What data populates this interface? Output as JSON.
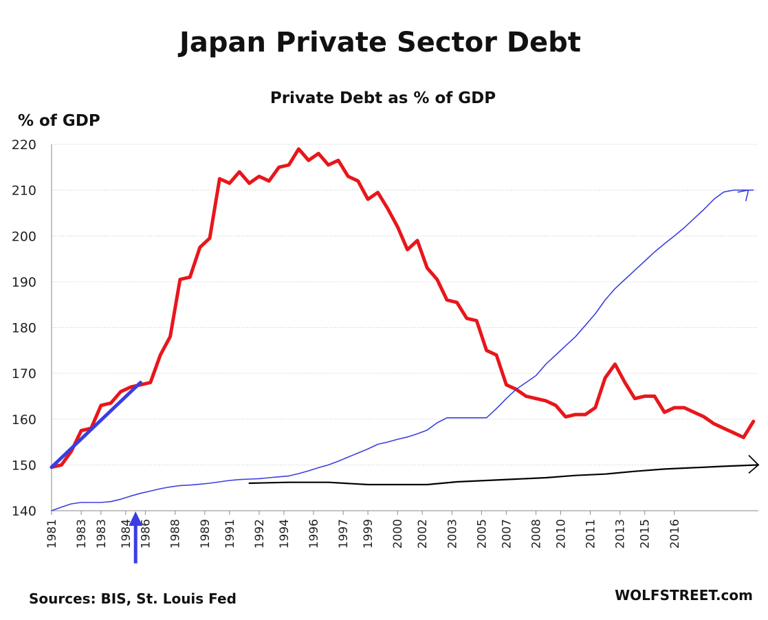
{
  "chart_data": {
    "type": "line",
    "title": "Japan Private Sector Debt",
    "subtitle": "Private Debt as % of GDP",
    "ylabel": "% of GDP",
    "ylim": [
      140,
      220
    ],
    "yticks": [
      140,
      150,
      160,
      170,
      180,
      190,
      200,
      210,
      220
    ],
    "grid": true,
    "x_range": [
      1981.0,
      2016.75
    ],
    "xtick_labels": [
      {
        "label": "1981",
        "x": 1981.0
      },
      {
        "label": "1983",
        "x": 1982.5
      },
      {
        "label": "1983",
        "x": 1983.5
      },
      {
        "label": "1984",
        "x": 1984.75
      },
      {
        "label": "1986",
        "x": 1985.75
      },
      {
        "label": "1988",
        "x": 1987.25
      },
      {
        "label": "1989",
        "x": 1988.75
      },
      {
        "label": "1991",
        "x": 1990.0
      },
      {
        "label": "1992",
        "x": 1991.5
      },
      {
        "label": "1994",
        "x": 1992.75
      },
      {
        "label": "1996",
        "x": 1994.25
      },
      {
        "label": "1997",
        "x": 1995.75
      },
      {
        "label": "1999",
        "x": 1997.0
      },
      {
        "label": "2000",
        "x": 1998.5
      },
      {
        "label": "2002",
        "x": 1999.75
      },
      {
        "label": "2003",
        "x": 2001.25
      },
      {
        "label": "2005",
        "x": 2002.75
      },
      {
        "label": "2007",
        "x": 2004.0
      },
      {
        "label": "2008",
        "x": 2005.5
      },
      {
        "label": "2010",
        "x": 2006.75
      },
      {
        "label": "2011",
        "x": 2008.25
      },
      {
        "label": "2013",
        "x": 2009.75
      },
      {
        "label": "2015",
        "x": 2011.0
      },
      {
        "label": "2016",
        "x": 2012.5
      }
    ],
    "series": [
      {
        "color": "#e8161b",
        "x": [
          1981.0,
          1981.5,
          1982.0,
          1982.5,
          1983.0,
          1983.5,
          1984.0,
          1984.5,
          1985.0,
          1985.5,
          1986.0,
          1986.5,
          1987.0,
          1987.5,
          1988.0,
          1988.5,
          1989.0,
          1989.5,
          1990.0,
          1990.5,
          1991.0,
          1991.5,
          1992.0,
          1992.5,
          1993.0,
          1993.5,
          1994.0,
          1994.5,
          1995.0,
          1995.5,
          1996.0,
          1996.5,
          1997.0,
          1997.5,
          1998.0,
          1998.5,
          1999.0,
          1999.5,
          2000.0,
          2000.5,
          2001.0,
          2001.5,
          2002.0,
          2002.5,
          2003.0,
          2003.5,
          2004.0,
          2004.5,
          2005.0,
          2005.5,
          2006.0,
          2006.5,
          2007.0,
          2007.5,
          2008.0,
          2008.5,
          2009.0,
          2009.5,
          2010.0,
          2010.5,
          2011.0,
          2011.5,
          2012.0,
          2012.5,
          2013.0,
          2013.5,
          2014.0,
          2014.5,
          2015.0,
          2015.5,
          2016.0,
          2016.5
        ],
        "values": [
          149.5,
          150.0,
          153.0,
          157.5,
          158.0,
          163.0,
          163.5,
          166.0,
          167.0,
          167.5,
          168.0,
          174.0,
          178.0,
          190.5,
          191.0,
          197.5,
          199.5,
          212.5,
          211.5,
          214.0,
          211.5,
          213.0,
          212.0,
          215.0,
          215.5,
          219.0,
          216.5,
          218.0,
          215.5,
          216.5,
          213.0,
          212.0,
          208.0,
          209.5,
          206.0,
          202.0,
          197.0,
          199.0,
          193.0,
          190.5,
          186.0,
          185.5,
          182.0,
          181.5,
          175.0,
          174.0,
          167.5,
          166.5,
          165.0,
          164.5,
          164.0,
          163.0,
          160.5,
          161.0,
          161.0,
          162.5,
          169.0,
          172.0,
          168.0,
          164.5,
          165.0,
          165.0,
          161.5,
          162.5,
          162.5,
          161.5,
          160.5,
          159.0,
          158.0,
          157.0,
          156.0,
          159.5
        ]
      },
      {
        "color": "#3a3ee0",
        "x": [
          1981.0,
          1981.5,
          1982.0,
          1982.5,
          1983.0,
          1983.5,
          1984.0,
          1984.5,
          1985.0,
          1985.5,
          1986.0,
          1986.5,
          1987.0,
          1987.5,
          1988.0,
          1988.5,
          1989.0,
          1989.5,
          1990.0,
          1990.5,
          1991.0,
          1991.5,
          1992.0,
          1992.5,
          1993.0,
          1993.5,
          1994.0,
          1994.5,
          1995.0,
          1995.5,
          1996.0,
          1996.5,
          1997.0,
          1997.5,
          1998.0,
          1998.5,
          1999.0,
          1999.5,
          2000.0,
          2000.5,
          2001.0,
          2001.5,
          2002.0,
          2002.5,
          2003.0,
          2003.5,
          2004.0,
          2004.5,
          2005.0,
          2005.5,
          2006.0,
          2006.5,
          2007.0,
          2007.5,
          2008.0,
          2008.5,
          2009.0,
          2009.5,
          2010.0,
          2010.5,
          2011.0,
          2011.5,
          2012.0,
          2012.5,
          2013.0,
          2013.5,
          2014.0,
          2014.5,
          2015.0,
          2015.5,
          2016.0,
          2016.5
        ],
        "values": [
          140.0,
          140.8,
          141.5,
          141.8,
          141.8,
          141.8,
          142.0,
          142.5,
          143.2,
          143.8,
          144.3,
          144.8,
          145.2,
          145.5,
          145.6,
          145.8,
          146.0,
          146.3,
          146.6,
          146.8,
          146.9,
          147.0,
          147.2,
          147.4,
          147.6,
          148.1,
          148.7,
          149.4,
          150.0,
          150.8,
          151.7,
          152.6,
          153.5,
          154.5,
          155.0,
          155.6,
          156.1,
          156.8,
          157.6,
          159.2,
          160.3,
          160.3,
          160.3,
          160.3,
          160.3,
          162.3,
          164.5,
          166.5,
          168.0,
          169.5,
          172.0,
          174.0,
          176.0,
          178.0,
          180.5,
          183.0,
          186.0,
          188.5,
          190.5,
          192.5,
          194.5,
          196.5,
          198.3,
          200.0,
          201.8,
          203.8,
          205.8,
          208.0,
          209.6,
          210.0,
          210.0,
          210.0
        ]
      },
      {
        "color": "#000000",
        "x": [
          1991.0,
          1993.0,
          1995.0,
          1997.0,
          1998.5,
          2000.0,
          2001.5,
          2003.0,
          2004.5,
          2006.0,
          2007.5,
          2009.0,
          2010.5,
          2012.0,
          2013.5,
          2015.0,
          2016.75
        ],
        "values": [
          146.0,
          146.2,
          146.2,
          145.7,
          145.7,
          145.7,
          146.3,
          146.6,
          146.9,
          147.2,
          147.7,
          148.0,
          148.6,
          149.1,
          149.4,
          149.7,
          150.0
        ]
      }
    ]
  },
  "annotations": {
    "blue_trend_line": {
      "from": {
        "x": 1981.0,
        "y": 149.5
      },
      "to": {
        "x": 1985.5,
        "y": 168.0
      }
    },
    "blue_arrow": {
      "x": 1985.25,
      "from_y": 128.5,
      "to_y": 140.0
    },
    "blue_arrowhead_at": {
      "x": 2016.25,
      "y": 210.0
    },
    "black_arrowhead_at": {
      "x": 2016.75,
      "y": 150.0
    }
  },
  "footer": {
    "sources": "Sources: BIS, St. Louis Fed",
    "credit": "WOLFSTREET.com"
  },
  "colors": {
    "red": "#e8161b",
    "blue": "#3a3ee0",
    "black": "#000000"
  }
}
